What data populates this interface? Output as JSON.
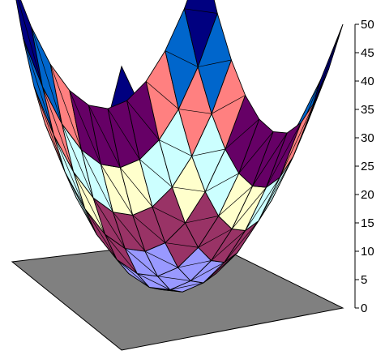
{
  "chart_data": {
    "type": "surface",
    "title": "",
    "xlabel": "",
    "ylabel": "",
    "zlabel": "",
    "zlim": [
      0,
      50
    ],
    "z_ticks": [
      0,
      5,
      10,
      15,
      20,
      25,
      30,
      35,
      40,
      45,
      50
    ],
    "z_tick_labels": [
      "0",
      "5",
      "10",
      "15",
      "20",
      "25",
      "30",
      "35",
      "40",
      "45",
      "50"
    ],
    "grid_size": 11,
    "surface_formula": "z = x^2 + y^2 with x, y from -5 to 5",
    "band_step": 5,
    "band_colors": [
      "#9999FF",
      "#993366",
      "#FFFFCC",
      "#CCFFFF",
      "#660066",
      "#FF8080",
      "#0066CC",
      "#CCCCFF",
      "#000080",
      "#FF00FF"
    ],
    "floor_color": "#808080",
    "legend": "none"
  }
}
